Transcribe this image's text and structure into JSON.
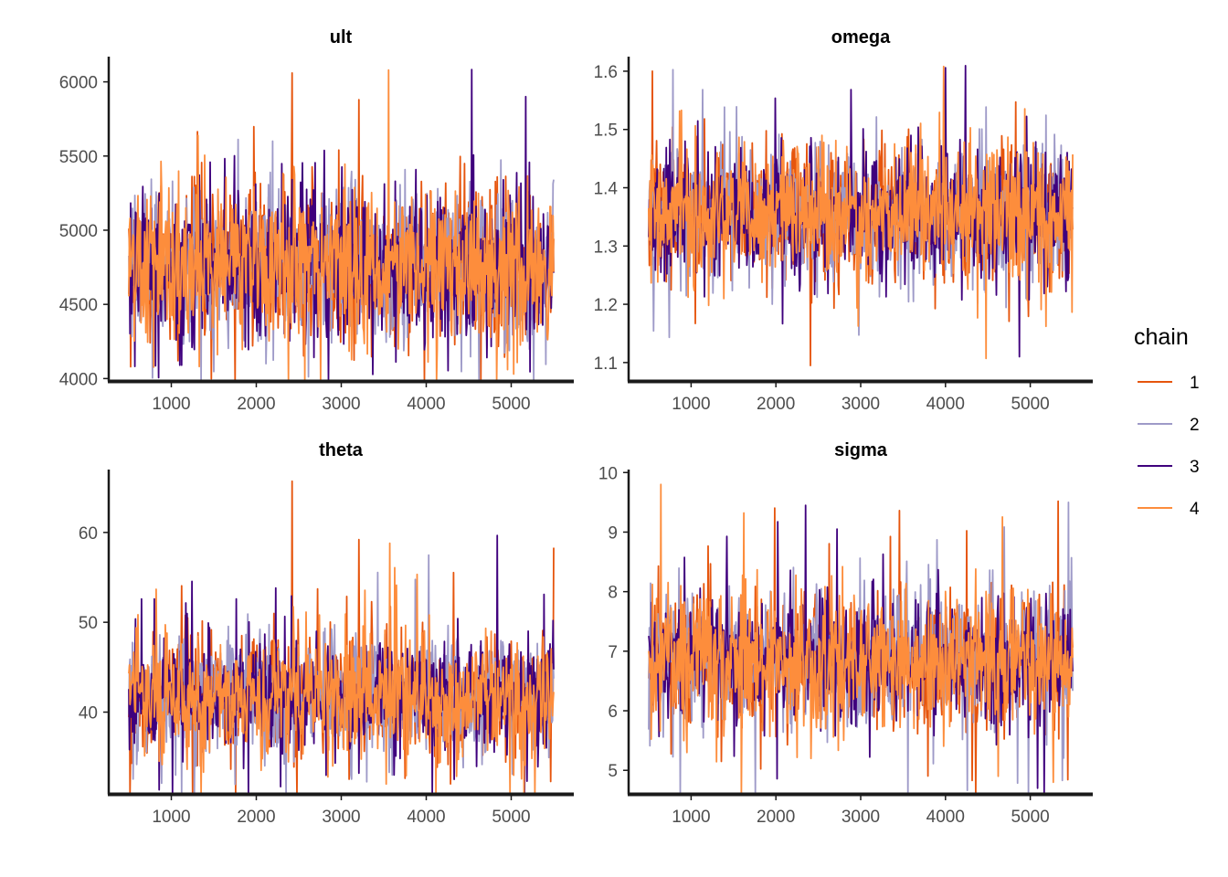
{
  "chart_data": {
    "type": "line",
    "x_range": [
      500,
      5500
    ],
    "x_ticks": [
      1000,
      2000,
      3000,
      4000,
      5000
    ],
    "grid": false,
    "legend": {
      "title": "chain",
      "position": "right",
      "entries": [
        {
          "label": "1",
          "color": "#e6550d"
        },
        {
          "label": "2",
          "color": "#9e9ac8"
        },
        {
          "label": "3",
          "color": "#3f007d"
        },
        {
          "label": "4",
          "color": "#fd8d3c"
        }
      ]
    },
    "panels": [
      {
        "title": "ult",
        "ylim": [
          3990,
          6170
        ],
        "y_ticks": [
          4000,
          4500,
          5000,
          5500,
          6000
        ],
        "y_tick_labels": [
          "4000",
          "4500",
          "5000",
          "5500",
          "6000"
        ],
        "center": 4760,
        "spread": 260,
        "spike_amp": 600,
        "spikes": [
          {
            "chain": 1,
            "x": 2420,
            "y": 6060
          },
          {
            "chain": 4,
            "x": 3560,
            "y": 6080
          },
          {
            "chain": 1,
            "x": 3210,
            "y": 5880
          },
          {
            "chain": 3,
            "x": 5170,
            "y": 5900
          },
          {
            "chain": 4,
            "x": 4960,
            "y": 4060
          },
          {
            "chain": 3,
            "x": 1100,
            "y": 4090
          }
        ]
      },
      {
        "title": "omega",
        "ylim": [
          1.07,
          1.625
        ],
        "y_ticks": [
          1.1,
          1.2,
          1.3,
          1.4,
          1.5,
          1.6
        ],
        "y_tick_labels": [
          "1.1",
          "1.2",
          "1.3",
          "1.4",
          "1.5",
          "1.6"
        ],
        "center": 1.355,
        "spread": 0.055,
        "spike_amp": 0.14,
        "spikes": [
          {
            "chain": 1,
            "x": 540,
            "y": 1.6
          },
          {
            "chain": 4,
            "x": 3980,
            "y": 1.608
          },
          {
            "chain": 3,
            "x": 4000,
            "y": 1.606
          },
          {
            "chain": 1,
            "x": 2410,
            "y": 1.095
          },
          {
            "chain": 4,
            "x": 4480,
            "y": 1.107
          },
          {
            "chain": 3,
            "x": 4870,
            "y": 1.11
          }
        ]
      },
      {
        "title": "theta",
        "ylim": [
          31,
          67
        ],
        "y_ticks": [
          40,
          50,
          60
        ],
        "y_tick_labels": [
          "40",
          "50",
          "60"
        ],
        "center": 41.8,
        "spread": 3.2,
        "spike_amp": 9,
        "spikes": [
          {
            "chain": 1,
            "x": 2420,
            "y": 65.7
          },
          {
            "chain": 1,
            "x": 3210,
            "y": 59.2
          },
          {
            "chain": 4,
            "x": 3570,
            "y": 58.8
          },
          {
            "chain": 1,
            "x": 5500,
            "y": 58.3
          },
          {
            "chain": 4,
            "x": 3530,
            "y": 32.0
          },
          {
            "chain": 3,
            "x": 3210,
            "y": 33.2
          }
        ]
      },
      {
        "title": "sigma",
        "ylim": [
          4.62,
          10.05
        ],
        "y_ticks": [
          5,
          6,
          7,
          8,
          9,
          10
        ],
        "y_tick_labels": [
          "5",
          "6",
          "7",
          "8",
          "9",
          "10"
        ],
        "center": 6.85,
        "spread": 0.55,
        "spike_amp": 1.6,
        "spikes": [
          {
            "chain": 4,
            "x": 640,
            "y": 9.8
          },
          {
            "chain": 1,
            "x": 5330,
            "y": 9.52
          },
          {
            "chain": 2,
            "x": 5450,
            "y": 9.5
          },
          {
            "chain": 3,
            "x": 2350,
            "y": 9.45
          },
          {
            "chain": 4,
            "x": 5270,
            "y": 4.8
          },
          {
            "chain": 4,
            "x": 4620,
            "y": 4.9
          }
        ]
      }
    ]
  }
}
